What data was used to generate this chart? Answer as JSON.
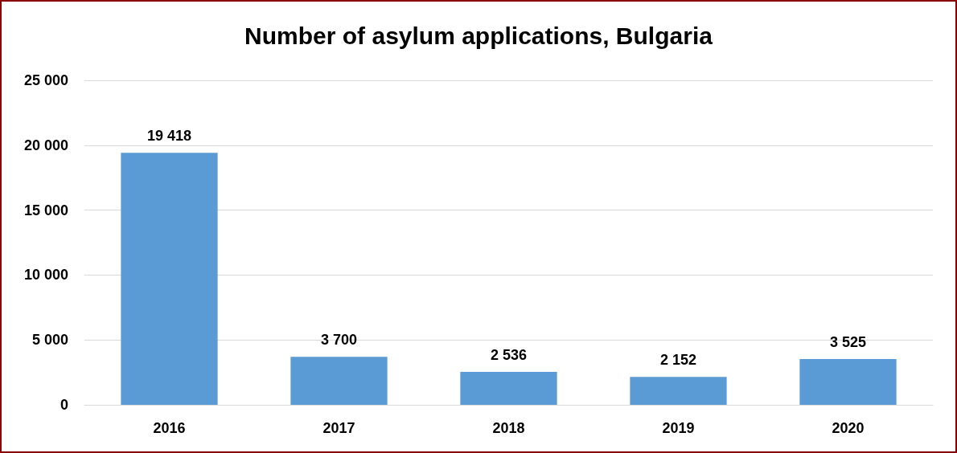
{
  "chart_data": {
    "type": "bar",
    "title": "Number of asylum applications, Bulgaria",
    "categories": [
      "2016",
      "2017",
      "2018",
      "2019",
      "2020"
    ],
    "values": [
      19418,
      3700,
      2536,
      2152,
      3525
    ],
    "value_labels": [
      "19 418",
      "3 700",
      "2 536",
      "2 152",
      "3 525"
    ],
    "color": "#5b9bd5",
    "ylim": [
      0,
      25000
    ],
    "yticks": [
      {
        "value": 0,
        "label": "0"
      },
      {
        "value": 5000,
        "label": "5 000"
      },
      {
        "value": 10000,
        "label": "10 000"
      },
      {
        "value": 15000,
        "label": "15 000"
      },
      {
        "value": 20000,
        "label": "20 000"
      },
      {
        "value": 25000,
        "label": "25 000"
      }
    ],
    "grid": "y"
  }
}
